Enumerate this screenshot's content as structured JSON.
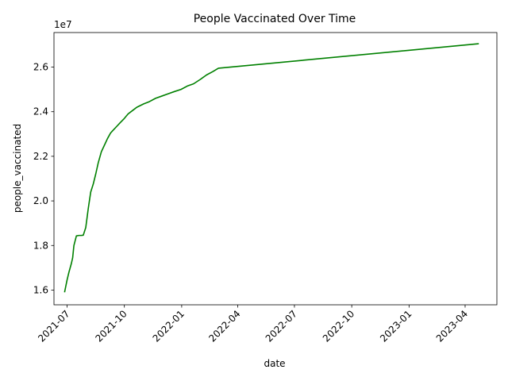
{
  "chart_data": {
    "type": "line",
    "title": "People Vaccinated Over Time",
    "xlabel": "date",
    "ylabel": "people_vaccinated",
    "y_offset_label": "1e7",
    "y_scale": 10000000,
    "grid": false,
    "legend": "none",
    "line_color": "#008000",
    "xlim": [
      "2021-06-10",
      "2023-05-22"
    ],
    "ylim": [
      15340000,
      27550000
    ],
    "x_ticks": [
      {
        "date": "2021-07-01",
        "label": "2021-07"
      },
      {
        "date": "2021-10-01",
        "label": "2021-10"
      },
      {
        "date": "2022-01-01",
        "label": "2022-01"
      },
      {
        "date": "2022-04-01",
        "label": "2022-04"
      },
      {
        "date": "2022-07-01",
        "label": "2022-07"
      },
      {
        "date": "2022-10-01",
        "label": "2022-10"
      },
      {
        "date": "2023-01-01",
        "label": "2023-01"
      },
      {
        "date": "2023-04-01",
        "label": "2023-04"
      }
    ],
    "y_ticks": [
      {
        "value": 16000000,
        "label": "1.6"
      },
      {
        "value": 18000000,
        "label": "1.8"
      },
      {
        "value": 20000000,
        "label": "2.0"
      },
      {
        "value": 22000000,
        "label": "2.2"
      },
      {
        "value": 24000000,
        "label": "2.4"
      },
      {
        "value": 26000000,
        "label": "2.6"
      }
    ],
    "series": [
      {
        "x": [
          "2021-06-27",
          "2021-07-01",
          "2021-07-04",
          "2021-07-08",
          "2021-07-10",
          "2021-07-12",
          "2021-07-16",
          "2021-07-20",
          "2021-07-24",
          "2021-07-27",
          "2021-07-31",
          "2021-08-04",
          "2021-08-08",
          "2021-08-12",
          "2021-08-16",
          "2021-08-20",
          "2021-08-25",
          "2021-08-30",
          "2021-09-04",
          "2021-09-09",
          "2021-09-14",
          "2021-09-19",
          "2021-09-24",
          "2021-10-01",
          "2021-10-07",
          "2021-10-14",
          "2021-10-21",
          "2021-11-01",
          "2021-11-10",
          "2021-11-20",
          "2021-11-30",
          "2021-12-10",
          "2021-12-20",
          "2021-12-31",
          "2022-01-10",
          "2022-01-20",
          "2022-01-31",
          "2022-02-10",
          "2022-02-20",
          "2022-03-01",
          "2023-04-23"
        ],
        "y": [
          15900000,
          16450000,
          16800000,
          17200000,
          17450000,
          18000000,
          18430000,
          18450000,
          18450000,
          18460000,
          18800000,
          19650000,
          20400000,
          20750000,
          21200000,
          21700000,
          22200000,
          22500000,
          22800000,
          23050000,
          23200000,
          23350000,
          23500000,
          23700000,
          23900000,
          24050000,
          24200000,
          24350000,
          24450000,
          24600000,
          24700000,
          24800000,
          24900000,
          25000000,
          25150000,
          25250000,
          25450000,
          25650000,
          25800000,
          25950000,
          27050000
        ]
      }
    ]
  }
}
